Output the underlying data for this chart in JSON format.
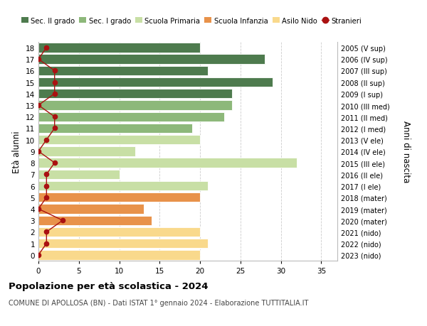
{
  "ages": [
    0,
    1,
    2,
    3,
    4,
    5,
    6,
    7,
    8,
    9,
    10,
    11,
    12,
    13,
    14,
    15,
    16,
    17,
    18
  ],
  "bar_values": [
    20,
    21,
    20,
    14,
    13,
    20,
    21,
    10,
    32,
    12,
    20,
    19,
    23,
    24,
    24,
    29,
    21,
    28,
    20
  ],
  "bar_colors": [
    "#F9D98C",
    "#F9D98C",
    "#F9D98C",
    "#E8924A",
    "#E8924A",
    "#E8924A",
    "#C8DFA5",
    "#C8DFA5",
    "#C8DFA5",
    "#C8DFA5",
    "#C8DFA5",
    "#8DB87A",
    "#8DB87A",
    "#8DB87A",
    "#4E7B4E",
    "#4E7B4E",
    "#4E7B4E",
    "#4E7B4E",
    "#4E7B4E"
  ],
  "stranieri_values": [
    0,
    1,
    1,
    3,
    0,
    1,
    1,
    1,
    2,
    0,
    1,
    2,
    2,
    0,
    2,
    2,
    2,
    0,
    1
  ],
  "right_labels": [
    "2023 (nido)",
    "2022 (nido)",
    "2021 (nido)",
    "2020 (mater)",
    "2019 (mater)",
    "2018 (mater)",
    "2017 (I ele)",
    "2016 (II ele)",
    "2015 (III ele)",
    "2014 (IV ele)",
    "2013 (V ele)",
    "2012 (I med)",
    "2011 (II med)",
    "2010 (III med)",
    "2009 (I sup)",
    "2008 (II sup)",
    "2007 (III sup)",
    "2006 (IV sup)",
    "2005 (V sup)"
  ],
  "legend_labels": [
    "Sec. II grado",
    "Sec. I grado",
    "Scuola Primaria",
    "Scuola Infanzia",
    "Asilo Nido",
    "Stranieri"
  ],
  "legend_colors": [
    "#4E7B4E",
    "#8DB87A",
    "#C8DFA5",
    "#E8924A",
    "#F9D98C",
    "#AA1111"
  ],
  "ylabel": "Età alunni",
  "right_ylabel": "Anni di nascita",
  "title": "Popolazione per età scolastica - 2024",
  "subtitle": "COMUNE DI APOLLOSA (BN) - Dati ISTAT 1° gennaio 2024 - Elaborazione TUTTITALIA.IT",
  "xlim": [
    0,
    37
  ],
  "xticks": [
    0,
    5,
    10,
    15,
    20,
    25,
    30,
    35
  ],
  "stranieri_color": "#AA1111",
  "background_color": "#FFFFFF",
  "grid_color": "#CCCCCC"
}
